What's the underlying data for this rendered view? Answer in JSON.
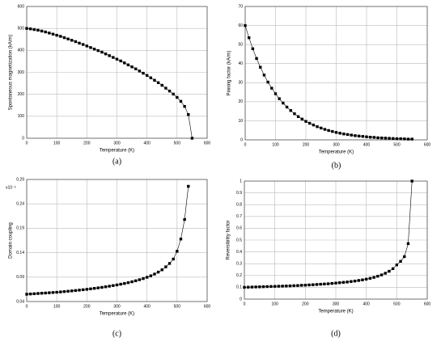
{
  "chart_data": [
    {
      "type": "line",
      "caption": "(a)",
      "xlabel": "Temperature (K)",
      "ylabel": "Spontaneous magnetization (kA/m)",
      "color": "#000000",
      "grid": true,
      "xlim": [
        0,
        600
      ],
      "xticks": [
        0,
        100,
        200,
        300,
        400,
        500,
        600
      ],
      "ylim": [
        0,
        600
      ],
      "yticks": [
        0,
        100,
        200,
        300,
        400,
        500,
        600
      ],
      "x": [
        0,
        12.5,
        25,
        37.5,
        50,
        62.5,
        75,
        87.5,
        100,
        112.5,
        125,
        137.5,
        150,
        162.5,
        175,
        187.5,
        200,
        212.5,
        225,
        237.5,
        250,
        262.5,
        275,
        287.5,
        300,
        312.5,
        325,
        337.5,
        350,
        362.5,
        375,
        387.5,
        400,
        412.5,
        425,
        437.5,
        450,
        462.5,
        475,
        487.5,
        500,
        512.5,
        525,
        537.5,
        550
      ],
      "values": [
        500,
        498,
        495,
        492,
        488,
        484,
        479,
        474,
        469,
        464,
        458,
        452,
        446,
        440,
        433,
        427,
        420,
        413,
        406,
        399,
        392,
        384,
        376,
        368,
        360,
        352,
        343,
        334,
        325,
        316,
        306,
        296,
        286,
        275,
        264,
        253,
        241,
        228,
        215,
        201,
        186,
        168,
        145,
        108,
        0
      ]
    },
    {
      "type": "line",
      "caption": "(b)",
      "xlabel": "Temperature (K)",
      "ylabel": "Pinning factor (kA/m)",
      "color": "#000000",
      "grid": true,
      "xlim": [
        0,
        600
      ],
      "xticks": [
        0,
        100,
        200,
        300,
        400,
        500,
        600
      ],
      "ylim": [
        0,
        70
      ],
      "yticks": [
        0,
        10,
        20,
        30,
        40,
        50,
        60,
        70
      ],
      "x": [
        0,
        12.5,
        25,
        37.5,
        50,
        62.5,
        75,
        87.5,
        100,
        112.5,
        125,
        137.5,
        150,
        162.5,
        175,
        187.5,
        200,
        212.5,
        225,
        237.5,
        250,
        262.5,
        275,
        287.5,
        300,
        312.5,
        325,
        337.5,
        350,
        362.5,
        375,
        387.5,
        400,
        412.5,
        425,
        437.5,
        450,
        462.5,
        475,
        487.5,
        500,
        512.5,
        525,
        537.5,
        550
      ],
      "values": [
        60,
        53.6,
        47.8,
        42.7,
        38.1,
        34.0,
        30.3,
        27.1,
        24.2,
        21.6,
        19.3,
        17.2,
        15.4,
        13.7,
        12.2,
        10.9,
        9.7,
        8.7,
        7.8,
        6.9,
        6.2,
        5.5,
        4.9,
        4.4,
        3.9,
        3.5,
        3.1,
        2.8,
        2.5,
        2.2,
        2.0,
        1.8,
        1.6,
        1.4,
        1.3,
        1.1,
        1.0,
        0.9,
        0.8,
        0.7,
        0.6,
        0.6,
        0.5,
        0.4,
        0.4
      ]
    },
    {
      "type": "line",
      "caption": "(c)",
      "xlabel": "Temperature (K)",
      "ylabel": "Domain coupling",
      "annotation": "x10⁻³",
      "color": "#000000",
      "grid": true,
      "xlim": [
        0,
        600
      ],
      "xticks": [
        0,
        100,
        200,
        300,
        400,
        500,
        600
      ],
      "ylim": [
        0.04,
        0.29
      ],
      "yticks": [
        0.04,
        0.09,
        0.14,
        0.19,
        0.24,
        0.29
      ],
      "x": [
        0,
        12.5,
        25,
        37.5,
        50,
        62.5,
        75,
        87.5,
        100,
        112.5,
        125,
        137.5,
        150,
        162.5,
        175,
        187.5,
        200,
        212.5,
        225,
        237.5,
        250,
        262.5,
        275,
        287.5,
        300,
        312.5,
        325,
        337.5,
        350,
        362.5,
        375,
        387.5,
        400,
        412.5,
        425,
        437.5,
        450,
        462.5,
        475,
        487.5,
        500,
        512.5,
        525,
        537.5
      ],
      "values": [
        0.055,
        0.0555,
        0.056,
        0.0565,
        0.057,
        0.0575,
        0.058,
        0.0585,
        0.059,
        0.0597,
        0.0604,
        0.0611,
        0.0618,
        0.0626,
        0.0634,
        0.0642,
        0.065,
        0.066,
        0.067,
        0.068,
        0.069,
        0.0702,
        0.0714,
        0.0727,
        0.074,
        0.0755,
        0.077,
        0.0787,
        0.0805,
        0.0825,
        0.0847,
        0.087,
        0.0897,
        0.0927,
        0.0962,
        0.1003,
        0.105,
        0.111,
        0.118,
        0.127,
        0.143,
        0.168,
        0.208,
        0.276
      ]
    },
    {
      "type": "line",
      "caption": "(d)",
      "xlabel": "Temperature (K)",
      "ylabel": "Reversibility factor",
      "color": "#000000",
      "grid": true,
      "xlim": [
        0,
        600
      ],
      "xticks": [
        0,
        100,
        200,
        300,
        400,
        500,
        600
      ],
      "ylim": [
        0,
        1
      ],
      "yticks": [
        0,
        0.1,
        0.2,
        0.3,
        0.4,
        0.5,
        0.6,
        0.7,
        0.8,
        0.9,
        1
      ],
      "x": [
        0,
        12.5,
        25,
        37.5,
        50,
        62.5,
        75,
        87.5,
        100,
        112.5,
        125,
        137.5,
        150,
        162.5,
        175,
        187.5,
        200,
        212.5,
        225,
        237.5,
        250,
        262.5,
        275,
        287.5,
        300,
        312.5,
        325,
        337.5,
        350,
        362.5,
        375,
        387.5,
        400,
        412.5,
        425,
        437.5,
        450,
        462.5,
        475,
        487.5,
        500,
        512.5,
        525,
        537.5,
        550
      ],
      "values": [
        0.1,
        0.101,
        0.102,
        0.103,
        0.104,
        0.105,
        0.106,
        0.107,
        0.108,
        0.109,
        0.11,
        0.111,
        0.112,
        0.114,
        0.115,
        0.117,
        0.118,
        0.12,
        0.122,
        0.124,
        0.126,
        0.128,
        0.13,
        0.133,
        0.136,
        0.139,
        0.142,
        0.145,
        0.149,
        0.153,
        0.158,
        0.163,
        0.169,
        0.176,
        0.184,
        0.194,
        0.205,
        0.219,
        0.236,
        0.258,
        0.29,
        0.32,
        0.36,
        0.47,
        1.0
      ]
    }
  ]
}
